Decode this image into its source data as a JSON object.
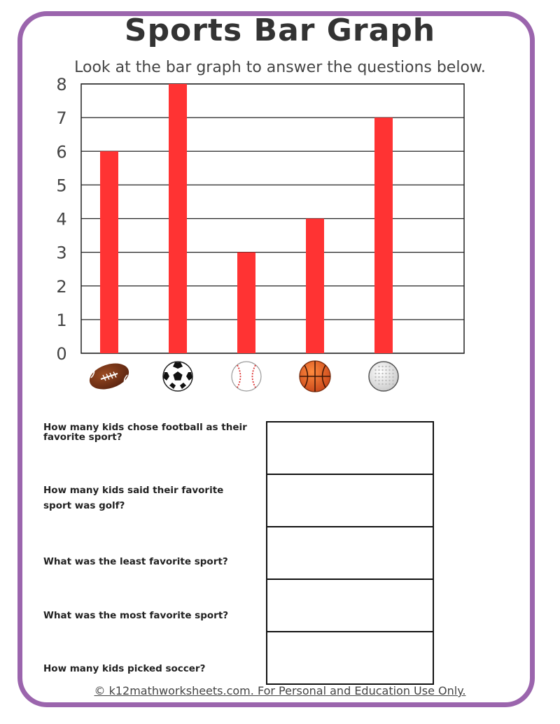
{
  "worksheet": {
    "title": "Sports Bar Graph",
    "subtitle": "Look at the bar graph to answer the questions below.",
    "footer": "© k12mathworksheets.com. For Personal and Education Use Only.",
    "frame_color": "#9b65ad"
  },
  "chart_data": {
    "type": "bar",
    "title": "",
    "xlabel": "",
    "ylabel": "",
    "categories": [
      "football",
      "soccer",
      "baseball",
      "basketball",
      "golf"
    ],
    "category_icons": [
      "football-icon",
      "soccer-ball-icon",
      "baseball-icon",
      "basketball-icon",
      "golf-ball-icon"
    ],
    "values": [
      6,
      8,
      3,
      4,
      7
    ],
    "ylim": [
      0,
      8
    ],
    "yticks": [
      "0",
      "1",
      "2",
      "3",
      "4",
      "5",
      "6",
      "7",
      "8"
    ],
    "grid": true,
    "bar_color": "#ff3333",
    "legend": "none"
  },
  "questions": [
    {
      "text": "How many kids chose football as their favorite sport?",
      "answer": ""
    },
    {
      "text": "How many kids said their favorite sport was golf?",
      "answer": ""
    },
    {
      "text": "What was the least favorite sport?",
      "answer": ""
    },
    {
      "text": "What was the most favorite sport?",
      "answer": ""
    },
    {
      "text": "How many kids picked soccer?",
      "answer": ""
    }
  ]
}
